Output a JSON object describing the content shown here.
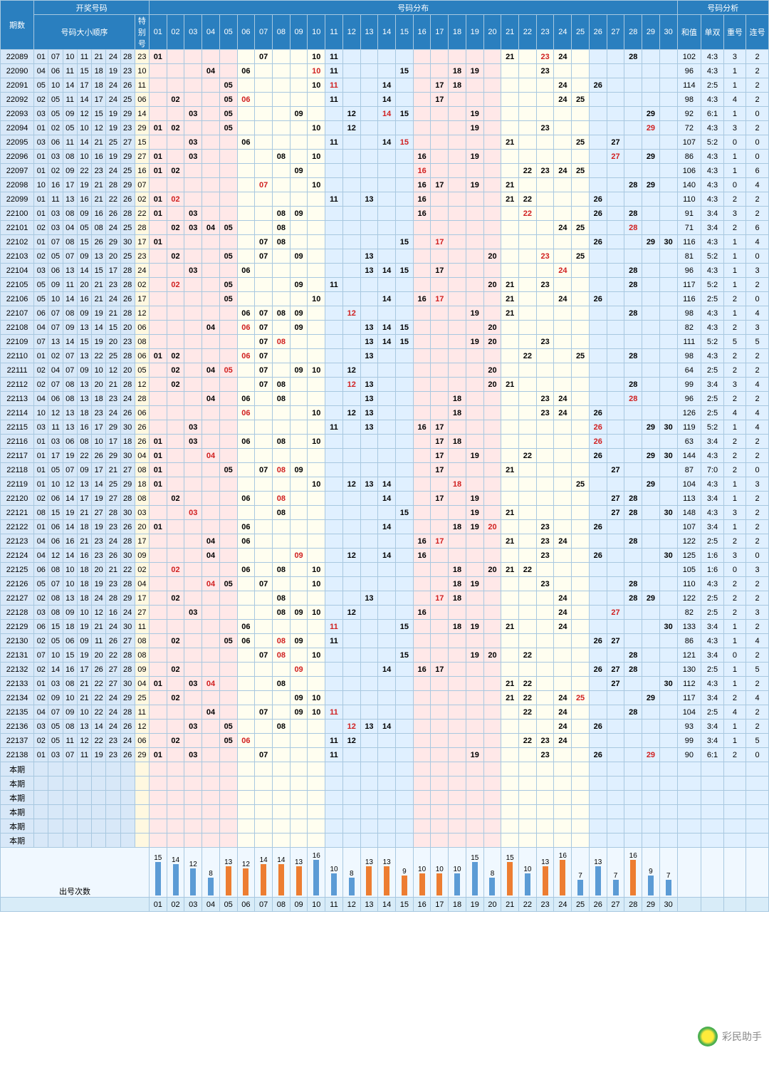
{
  "headers": {
    "period": "期数",
    "winning_group": "开奖号码",
    "winning_order": "号码大小顺序",
    "special": "特别号",
    "distribution": "号码分布",
    "analysis": "号码分析",
    "sum": "和值",
    "odd_even": "单双",
    "repeat": "重号",
    "consec": "连号"
  },
  "num_columns": 30,
  "dist_bg_groups": [
    {
      "from": 1,
      "to": 5,
      "class": "bg1"
    },
    {
      "from": 6,
      "to": 10,
      "class": "bg2"
    },
    {
      "from": 11,
      "to": 15,
      "class": "bg3"
    },
    {
      "from": 16,
      "to": 20,
      "class": "bg1"
    },
    {
      "from": 21,
      "to": 25,
      "class": "bg2"
    },
    {
      "from": 26,
      "to": 30,
      "class": "bg3"
    }
  ],
  "colors": {
    "header_bg": "#2a7fbf",
    "header_fg": "#ffffff",
    "border": "#a8c8e0",
    "winn_bg": "#d8e8f8",
    "special_bg": "#fff8e0",
    "bg1": "#ffe8e8",
    "bg2": "#fffef0",
    "bg3": "#e0f0ff",
    "hit_red": "#d02020",
    "bar_colors": [
      "#5b9bd5",
      "#5b9bd5",
      "#5b9bd5",
      "#5b9bd5",
      "#ed7d31",
      "#ed7d31",
      "#ed7d31",
      "#ed7d31",
      "#ed7d31",
      "#5b9bd5",
      "#5b9bd5",
      "#5b9bd5",
      "#ed7d31",
      "#ed7d31",
      "#ed7d31",
      "#ed7d31",
      "#ed7d31",
      "#5b9bd5",
      "#5b9bd5",
      "#5b9bd5",
      "#ed7d31",
      "#5b9bd5",
      "#ed7d31",
      "#ed7d31",
      "#5b9bd5",
      "#5b9bd5",
      "#5b9bd5",
      "#ed7d31",
      "#5b9bd5",
      "#5b9bd5"
    ]
  },
  "rows": [
    {
      "period": "22089",
      "nums": [
        "01",
        "07",
        "10",
        "11",
        "21",
        "24",
        "28"
      ],
      "special": "23",
      "red": [
        23
      ],
      "sum": 102,
      "oe": "4:3",
      "rep": 3,
      "con": 2
    },
    {
      "period": "22090",
      "nums": [
        "04",
        "06",
        "11",
        "15",
        "18",
        "19",
        "23"
      ],
      "special": "10",
      "red": [
        10
      ],
      "sum": 96,
      "oe": "4:3",
      "rep": 1,
      "con": 2
    },
    {
      "period": "22091",
      "nums": [
        "05",
        "10",
        "14",
        "17",
        "18",
        "24",
        "26"
      ],
      "special": "11",
      "red": [
        11
      ],
      "sum": 114,
      "oe": "2:5",
      "rep": 1,
      "con": 2
    },
    {
      "period": "22092",
      "nums": [
        "02",
        "05",
        "11",
        "14",
        "17",
        "24",
        "25"
      ],
      "special": "06",
      "red": [
        6
      ],
      "sum": 98,
      "oe": "4:3",
      "rep": 4,
      "con": 2
    },
    {
      "period": "22093",
      "nums": [
        "03",
        "05",
        "09",
        "12",
        "15",
        "19",
        "29"
      ],
      "special": "14",
      "red": [
        14
      ],
      "sum": 92,
      "oe": "6:1",
      "rep": 1,
      "con": 0
    },
    {
      "period": "22094",
      "nums": [
        "01",
        "02",
        "05",
        "10",
        "12",
        "19",
        "23"
      ],
      "special": "29",
      "red": [
        29
      ],
      "sum": 72,
      "oe": "4:3",
      "rep": 3,
      "con": 2
    },
    {
      "period": "22095",
      "nums": [
        "03",
        "06",
        "11",
        "14",
        "21",
        "25",
        "27"
      ],
      "special": "15",
      "red": [
        15
      ],
      "sum": 107,
      "oe": "5:2",
      "rep": 0,
      "con": 0
    },
    {
      "period": "22096",
      "nums": [
        "01",
        "03",
        "08",
        "10",
        "16",
        "19",
        "29"
      ],
      "special": "27",
      "red": [
        27
      ],
      "sum": 86,
      "oe": "4:3",
      "rep": 1,
      "con": 0
    },
    {
      "period": "22097",
      "nums": [
        "01",
        "02",
        "09",
        "22",
        "23",
        "24",
        "25"
      ],
      "special": "16",
      "red": [
        16
      ],
      "sum": 106,
      "oe": "4:3",
      "rep": 1,
      "con": 6
    },
    {
      "period": "22098",
      "nums": [
        "10",
        "16",
        "17",
        "19",
        "21",
        "28",
        "29"
      ],
      "special": "07",
      "red": [
        7
      ],
      "sum": 140,
      "oe": "4:3",
      "rep": 0,
      "con": 4
    },
    {
      "period": "22099",
      "nums": [
        "01",
        "11",
        "13",
        "16",
        "21",
        "22",
        "26"
      ],
      "special": "02",
      "red": [
        2
      ],
      "sum": 110,
      "oe": "4:3",
      "rep": 2,
      "con": 2
    },
    {
      "period": "22100",
      "nums": [
        "01",
        "03",
        "08",
        "09",
        "16",
        "26",
        "28"
      ],
      "special": "22",
      "red": [
        22
      ],
      "sum": 91,
      "oe": "3:4",
      "rep": 3,
      "con": 2
    },
    {
      "period": "22101",
      "nums": [
        "02",
        "03",
        "04",
        "05",
        "08",
        "24",
        "25"
      ],
      "special": "28",
      "red": [
        28
      ],
      "sum": 71,
      "oe": "3:4",
      "rep": 2,
      "con": 6
    },
    {
      "period": "22102",
      "nums": [
        "01",
        "07",
        "08",
        "15",
        "26",
        "29",
        "30"
      ],
      "special": "17",
      "red": [
        17
      ],
      "sum": 116,
      "oe": "4:3",
      "rep": 1,
      "con": 4
    },
    {
      "period": "22103",
      "nums": [
        "02",
        "05",
        "07",
        "09",
        "13",
        "20",
        "25"
      ],
      "special": "23",
      "red": [
        23
      ],
      "sum": 81,
      "oe": "5:2",
      "rep": 1,
      "con": 0
    },
    {
      "period": "22104",
      "nums": [
        "03",
        "06",
        "13",
        "14",
        "15",
        "17",
        "28"
      ],
      "special": "24",
      "red": [
        24
      ],
      "sum": 96,
      "oe": "4:3",
      "rep": 1,
      "con": 3
    },
    {
      "period": "22105",
      "nums": [
        "05",
        "09",
        "11",
        "20",
        "21",
        "23",
        "28"
      ],
      "special": "02",
      "red": [
        2
      ],
      "sum": 117,
      "oe": "5:2",
      "rep": 1,
      "con": 2
    },
    {
      "period": "22106",
      "nums": [
        "05",
        "10",
        "14",
        "16",
        "21",
        "24",
        "26"
      ],
      "special": "17",
      "red": [
        17
      ],
      "sum": 116,
      "oe": "2:5",
      "rep": 2,
      "con": 0
    },
    {
      "period": "22107",
      "nums": [
        "06",
        "07",
        "08",
        "09",
        "19",
        "21",
        "28"
      ],
      "special": "12",
      "red": [
        12
      ],
      "sum": 98,
      "oe": "4:3",
      "rep": 1,
      "con": 4
    },
    {
      "period": "22108",
      "nums": [
        "04",
        "07",
        "09",
        "13",
        "14",
        "15",
        "20"
      ],
      "special": "06",
      "red": [
        6
      ],
      "sum": 82,
      "oe": "4:3",
      "rep": 2,
      "con": 3
    },
    {
      "period": "22109",
      "nums": [
        "07",
        "13",
        "14",
        "15",
        "19",
        "20",
        "23"
      ],
      "special": "08",
      "red": [
        8
      ],
      "sum": 111,
      "oe": "5:2",
      "rep": 5,
      "con": 5
    },
    {
      "period": "22110",
      "nums": [
        "01",
        "02",
        "07",
        "13",
        "22",
        "25",
        "28"
      ],
      "special": "06",
      "red": [
        6
      ],
      "sum": 98,
      "oe": "4:3",
      "rep": 2,
      "con": 2
    },
    {
      "period": "22111",
      "nums": [
        "02",
        "04",
        "07",
        "09",
        "10",
        "12",
        "20"
      ],
      "special": "05",
      "red": [
        5
      ],
      "sum": 64,
      "oe": "2:5",
      "rep": 2,
      "con": 2
    },
    {
      "period": "22112",
      "nums": [
        "02",
        "07",
        "08",
        "13",
        "20",
        "21",
        "28"
      ],
      "special": "12",
      "red": [
        12
      ],
      "sum": 99,
      "oe": "3:4",
      "rep": 3,
      "con": 4
    },
    {
      "period": "22113",
      "nums": [
        "04",
        "06",
        "08",
        "13",
        "18",
        "23",
        "24"
      ],
      "special": "28",
      "red": [
        28
      ],
      "sum": 96,
      "oe": "2:5",
      "rep": 2,
      "con": 2
    },
    {
      "period": "22114",
      "nums": [
        "10",
        "12",
        "13",
        "18",
        "23",
        "24",
        "26"
      ],
      "special": "06",
      "red": [
        6
      ],
      "sum": 126,
      "oe": "2:5",
      "rep": 4,
      "con": 4
    },
    {
      "period": "22115",
      "nums": [
        "03",
        "11",
        "13",
        "16",
        "17",
        "29",
        "30"
      ],
      "special": "26",
      "red": [
        26
      ],
      "sum": 119,
      "oe": "5:2",
      "rep": 1,
      "con": 4
    },
    {
      "period": "22116",
      "nums": [
        "01",
        "03",
        "06",
        "08",
        "10",
        "17",
        "18"
      ],
      "special": "26",
      "red": [
        26
      ],
      "sum": 63,
      "oe": "3:4",
      "rep": 2,
      "con": 2
    },
    {
      "period": "22117",
      "nums": [
        "01",
        "17",
        "19",
        "22",
        "26",
        "29",
        "30"
      ],
      "special": "04",
      "red": [
        4
      ],
      "sum": 144,
      "oe": "4:3",
      "rep": 2,
      "con": 2
    },
    {
      "period": "22118",
      "nums": [
        "01",
        "05",
        "07",
        "09",
        "17",
        "21",
        "27"
      ],
      "special": "08",
      "red": [
        8
      ],
      "sum": 87,
      "oe": "7:0",
      "rep": 2,
      "con": 0
    },
    {
      "period": "22119",
      "nums": [
        "01",
        "10",
        "12",
        "13",
        "14",
        "25",
        "29"
      ],
      "special": "18",
      "red": [
        18
      ],
      "sum": 104,
      "oe": "4:3",
      "rep": 1,
      "con": 3
    },
    {
      "period": "22120",
      "nums": [
        "02",
        "06",
        "14",
        "17",
        "19",
        "27",
        "28"
      ],
      "special": "08",
      "red": [
        8
      ],
      "sum": 113,
      "oe": "3:4",
      "rep": 1,
      "con": 2
    },
    {
      "period": "22121",
      "nums": [
        "08",
        "15",
        "19",
        "21",
        "27",
        "28",
        "30"
      ],
      "special": "03",
      "red": [
        3
      ],
      "sum": 148,
      "oe": "4:3",
      "rep": 3,
      "con": 2
    },
    {
      "period": "22122",
      "nums": [
        "01",
        "06",
        "14",
        "18",
        "19",
        "23",
        "26"
      ],
      "special": "20",
      "red": [
        20
      ],
      "sum": 107,
      "oe": "3:4",
      "rep": 1,
      "con": 2
    },
    {
      "period": "22123",
      "nums": [
        "04",
        "06",
        "16",
        "21",
        "23",
        "24",
        "28"
      ],
      "special": "17",
      "red": [
        17
      ],
      "sum": 122,
      "oe": "2:5",
      "rep": 2,
      "con": 2
    },
    {
      "period": "22124",
      "nums": [
        "04",
        "12",
        "14",
        "16",
        "23",
        "26",
        "30"
      ],
      "special": "09",
      "red": [
        9
      ],
      "sum": 125,
      "oe": "1:6",
      "rep": 3,
      "con": 0
    },
    {
      "period": "22125",
      "nums": [
        "06",
        "08",
        "10",
        "18",
        "20",
        "21",
        "22"
      ],
      "special": "02",
      "red": [
        2
      ],
      "sum": 105,
      "oe": "1:6",
      "rep": 0,
      "con": 3
    },
    {
      "period": "22126",
      "nums": [
        "05",
        "07",
        "10",
        "18",
        "19",
        "23",
        "28"
      ],
      "special": "04",
      "red": [
        4
      ],
      "sum": 110,
      "oe": "4:3",
      "rep": 2,
      "con": 2
    },
    {
      "period": "22127",
      "nums": [
        "02",
        "08",
        "13",
        "18",
        "24",
        "28",
        "29"
      ],
      "special": "17",
      "red": [
        17
      ],
      "sum": 122,
      "oe": "2:5",
      "rep": 2,
      "con": 2
    },
    {
      "period": "22128",
      "nums": [
        "03",
        "08",
        "09",
        "10",
        "12",
        "16",
        "24"
      ],
      "special": "27",
      "red": [
        27
      ],
      "sum": 82,
      "oe": "2:5",
      "rep": 2,
      "con": 3
    },
    {
      "period": "22129",
      "nums": [
        "06",
        "15",
        "18",
        "19",
        "21",
        "24",
        "30"
      ],
      "special": "11",
      "red": [
        11
      ],
      "sum": 133,
      "oe": "3:4",
      "rep": 1,
      "con": 2
    },
    {
      "period": "22130",
      "nums": [
        "02",
        "05",
        "06",
        "09",
        "11",
        "26",
        "27"
      ],
      "special": "08",
      "red": [
        8
      ],
      "sum": 86,
      "oe": "4:3",
      "rep": 1,
      "con": 4
    },
    {
      "period": "22131",
      "nums": [
        "07",
        "10",
        "15",
        "19",
        "20",
        "22",
        "28"
      ],
      "special": "08",
      "red": [
        8
      ],
      "sum": 121,
      "oe": "3:4",
      "rep": 0,
      "con": 2
    },
    {
      "period": "22132",
      "nums": [
        "02",
        "14",
        "16",
        "17",
        "26",
        "27",
        "28"
      ],
      "special": "09",
      "red": [
        9
      ],
      "sum": 130,
      "oe": "2:5",
      "rep": 1,
      "con": 5
    },
    {
      "period": "22133",
      "nums": [
        "01",
        "03",
        "08",
        "21",
        "22",
        "27",
        "30"
      ],
      "special": "04",
      "red": [
        4
      ],
      "sum": 112,
      "oe": "4:3",
      "rep": 1,
      "con": 2
    },
    {
      "period": "22134",
      "nums": [
        "02",
        "09",
        "10",
        "21",
        "22",
        "24",
        "29"
      ],
      "special": "25",
      "red": [
        25
      ],
      "sum": 117,
      "oe": "3:4",
      "rep": 2,
      "con": 4
    },
    {
      "period": "22135",
      "nums": [
        "04",
        "07",
        "09",
        "10",
        "22",
        "24",
        "28"
      ],
      "special": "11",
      "red": [
        11
      ],
      "sum": 104,
      "oe": "2:5",
      "rep": 4,
      "con": 2
    },
    {
      "period": "22136",
      "nums": [
        "03",
        "05",
        "08",
        "13",
        "14",
        "24",
        "26"
      ],
      "special": "12",
      "red": [
        12
      ],
      "sum": 93,
      "oe": "3:4",
      "rep": 1,
      "con": 2
    },
    {
      "period": "22137",
      "nums": [
        "02",
        "05",
        "11",
        "12",
        "22",
        "23",
        "24"
      ],
      "special": "06",
      "red": [
        6
      ],
      "sum": 99,
      "oe": "3:4",
      "rep": 1,
      "con": 5
    },
    {
      "period": "22138",
      "nums": [
        "01",
        "03",
        "07",
        "11",
        "19",
        "23",
        "26"
      ],
      "special": "29",
      "red": [
        29
      ],
      "sum": 90,
      "oe": "6:1",
      "rep": 2,
      "con": 0
    }
  ],
  "empty_label": "本期",
  "empty_rows": 6,
  "freq_label": "出号次数",
  "freq": [
    15,
    14,
    12,
    8,
    13,
    12,
    14,
    14,
    13,
    16,
    10,
    8,
    13,
    13,
    9,
    10,
    10,
    10,
    15,
    8,
    15,
    10,
    13,
    16,
    7,
    13,
    7,
    16,
    9,
    7
  ],
  "freq_max": 16,
  "watermark": "彩民助手"
}
